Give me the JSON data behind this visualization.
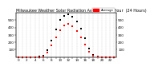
{
  "title": "Milwaukee Weather Solar Radiation Average  per Hour  (24 Hours)",
  "title_fontsize": 3.5,
  "background_color": "#ffffff",
  "grid_color": "#bbbbbb",
  "hours": [
    0,
    1,
    2,
    3,
    4,
    5,
    6,
    7,
    8,
    9,
    10,
    11,
    12,
    13,
    14,
    15,
    16,
    17,
    18,
    19,
    20,
    21,
    22,
    23
  ],
  "solar_avg": [
    0,
    0,
    0,
    0,
    0,
    1,
    12,
    65,
    155,
    265,
    365,
    425,
    445,
    415,
    355,
    265,
    165,
    72,
    18,
    3,
    0,
    0,
    0,
    0
  ],
  "solar_high": [
    0,
    0,
    0,
    0,
    0,
    2,
    20,
    90,
    220,
    370,
    500,
    560,
    580,
    550,
    480,
    380,
    250,
    120,
    30,
    5,
    0,
    0,
    0,
    0
  ],
  "dot_color_avg": "#ff0000",
  "dot_color_high": "#000000",
  "ylim": [
    0,
    600
  ],
  "ytick_right_vals": [
    100,
    200,
    300,
    400,
    500
  ],
  "ytick_left_vals": [
    100,
    200,
    300,
    400,
    500
  ],
  "tick_fontsize": 3.0,
  "xlabel_fontsize": 3.0,
  "legend_label": "Average",
  "legend_color": "#ff0000",
  "marker_size": 1.5,
  "figwidth": 1.6,
  "figheight": 0.87
}
